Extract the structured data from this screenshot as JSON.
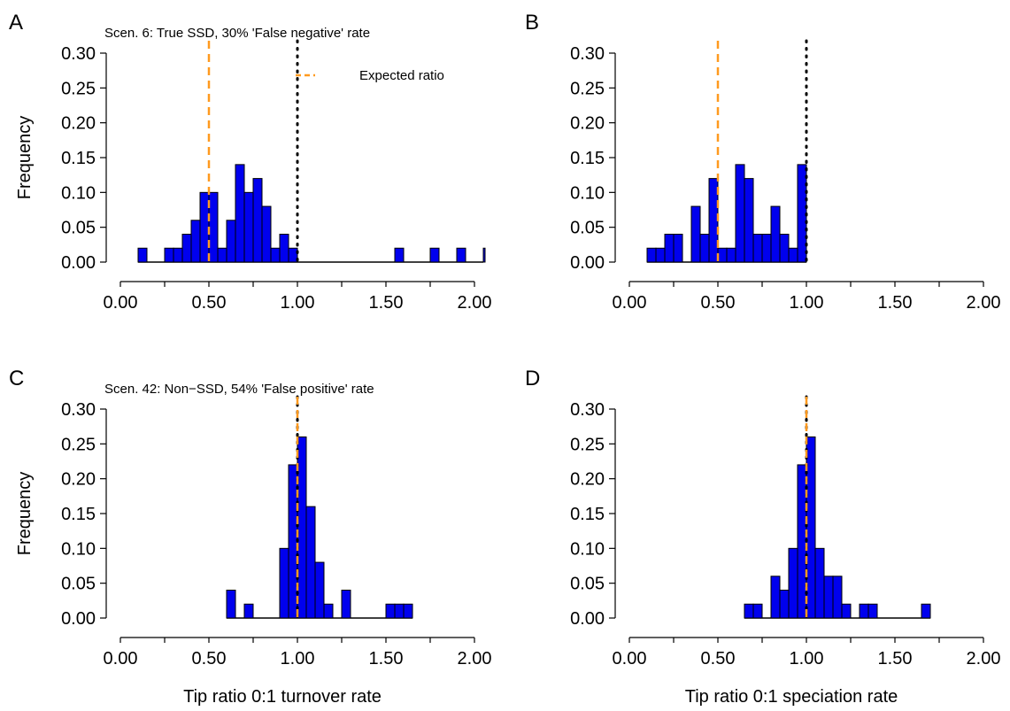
{
  "figure": {
    "xlabel_left": "Tip ratio 0:1 turnover rate",
    "xlabel_right": "Tip ratio 0:1 speciation rate",
    "ylabel": "Frequency",
    "legend_label": "Expected ratio"
  },
  "colors": {
    "bar_fill": "#0000ee",
    "bar_stroke": "#000000",
    "expected_line": "#ff9a1f",
    "reference_line": "#000000"
  },
  "chart_data": [
    {
      "id": "A",
      "type": "bar",
      "panel_letter": "A",
      "title": "Scen. 6: True SSD, 30% 'False negative' rate",
      "xlabel": "",
      "ylabel": "Frequency",
      "xlim": [
        0,
        2.05
      ],
      "ylim": [
        0,
        0.3
      ],
      "x_ticks": [
        "0.00",
        "0.50",
        "1.00",
        "1.50",
        "2.00"
      ],
      "y_ticks": [
        "0.00",
        "0.05",
        "0.10",
        "0.15",
        "0.20",
        "0.25",
        "0.30"
      ],
      "bin_width": 0.05,
      "bins": [
        [
          0.1,
          0.02
        ],
        [
          0.25,
          0.02
        ],
        [
          0.3,
          0.02
        ],
        [
          0.35,
          0.04
        ],
        [
          0.4,
          0.06
        ],
        [
          0.45,
          0.1
        ],
        [
          0.5,
          0.1
        ],
        [
          0.55,
          0.02
        ],
        [
          0.6,
          0.06
        ],
        [
          0.65,
          0.14
        ],
        [
          0.7,
          0.1
        ],
        [
          0.75,
          0.12
        ],
        [
          0.8,
          0.08
        ],
        [
          0.85,
          0.02
        ],
        [
          0.9,
          0.04
        ],
        [
          0.95,
          0.02
        ],
        [
          1.55,
          0.02
        ],
        [
          1.75,
          0.02
        ],
        [
          1.9,
          0.02
        ],
        [
          2.05,
          0.02
        ]
      ],
      "expected_ratio": 0.5,
      "reference_ratio": 1.0,
      "legend": {
        "label": "Expected ratio",
        "position": "top-right"
      }
    },
    {
      "id": "B",
      "type": "bar",
      "panel_letter": "B",
      "title": "",
      "xlabel": "",
      "ylabel": "",
      "xlim": [
        0,
        2.05
      ],
      "ylim": [
        0,
        0.3
      ],
      "x_ticks": [
        "0.00",
        "0.50",
        "1.00",
        "1.50",
        "2.00"
      ],
      "y_ticks": [
        "0.00",
        "0.05",
        "0.10",
        "0.15",
        "0.20",
        "0.25",
        "0.30"
      ],
      "bin_width": 0.05,
      "bins": [
        [
          0.1,
          0.02
        ],
        [
          0.15,
          0.02
        ],
        [
          0.2,
          0.04
        ],
        [
          0.25,
          0.04
        ],
        [
          0.35,
          0.08
        ],
        [
          0.4,
          0.04
        ],
        [
          0.45,
          0.12
        ],
        [
          0.5,
          0.02
        ],
        [
          0.55,
          0.02
        ],
        [
          0.6,
          0.14
        ],
        [
          0.65,
          0.12
        ],
        [
          0.7,
          0.04
        ],
        [
          0.75,
          0.04
        ],
        [
          0.8,
          0.08
        ],
        [
          0.85,
          0.04
        ],
        [
          0.9,
          0.02
        ],
        [
          0.95,
          0.14
        ]
      ],
      "expected_ratio": 0.5,
      "reference_ratio": 1.0
    },
    {
      "id": "C",
      "type": "bar",
      "panel_letter": "C",
      "title": "Scen. 42: Non−SSD, 54% 'False positive' rate",
      "xlabel": "Tip ratio 0:1 turnover rate",
      "ylabel": "Frequency",
      "xlim": [
        0,
        2.05
      ],
      "ylim": [
        0,
        0.3
      ],
      "x_ticks": [
        "0.00",
        "0.50",
        "1.00",
        "1.50",
        "2.00"
      ],
      "y_ticks": [
        "0.00",
        "0.05",
        "0.10",
        "0.15",
        "0.20",
        "0.25",
        "0.30"
      ],
      "bin_width": 0.05,
      "bins": [
        [
          0.6,
          0.04
        ],
        [
          0.7,
          0.02
        ],
        [
          0.9,
          0.1
        ],
        [
          0.95,
          0.22
        ],
        [
          1.0,
          0.26
        ],
        [
          1.05,
          0.16
        ],
        [
          1.1,
          0.08
        ],
        [
          1.15,
          0.02
        ],
        [
          1.25,
          0.04
        ],
        [
          1.5,
          0.02
        ],
        [
          1.55,
          0.02
        ],
        [
          1.6,
          0.02
        ]
      ],
      "expected_ratio": 1.0,
      "reference_ratio": 1.0
    },
    {
      "id": "D",
      "type": "bar",
      "panel_letter": "D",
      "title": "",
      "xlabel": "Tip ratio 0:1 speciation rate",
      "ylabel": "",
      "xlim": [
        0,
        2.05
      ],
      "ylim": [
        0,
        0.3
      ],
      "x_ticks": [
        "0.00",
        "0.50",
        "1.00",
        "1.50",
        "2.00"
      ],
      "y_ticks": [
        "0.00",
        "0.05",
        "0.10",
        "0.15",
        "0.20",
        "0.25",
        "0.30"
      ],
      "bin_width": 0.05,
      "bins": [
        [
          0.65,
          0.02
        ],
        [
          0.7,
          0.02
        ],
        [
          0.8,
          0.06
        ],
        [
          0.85,
          0.04
        ],
        [
          0.9,
          0.1
        ],
        [
          0.95,
          0.22
        ],
        [
          1.0,
          0.26
        ],
        [
          1.05,
          0.1
        ],
        [
          1.1,
          0.06
        ],
        [
          1.15,
          0.06
        ],
        [
          1.2,
          0.02
        ],
        [
          1.3,
          0.02
        ],
        [
          1.35,
          0.02
        ],
        [
          1.65,
          0.02
        ]
      ],
      "expected_ratio": 1.0,
      "reference_ratio": 1.0
    }
  ]
}
